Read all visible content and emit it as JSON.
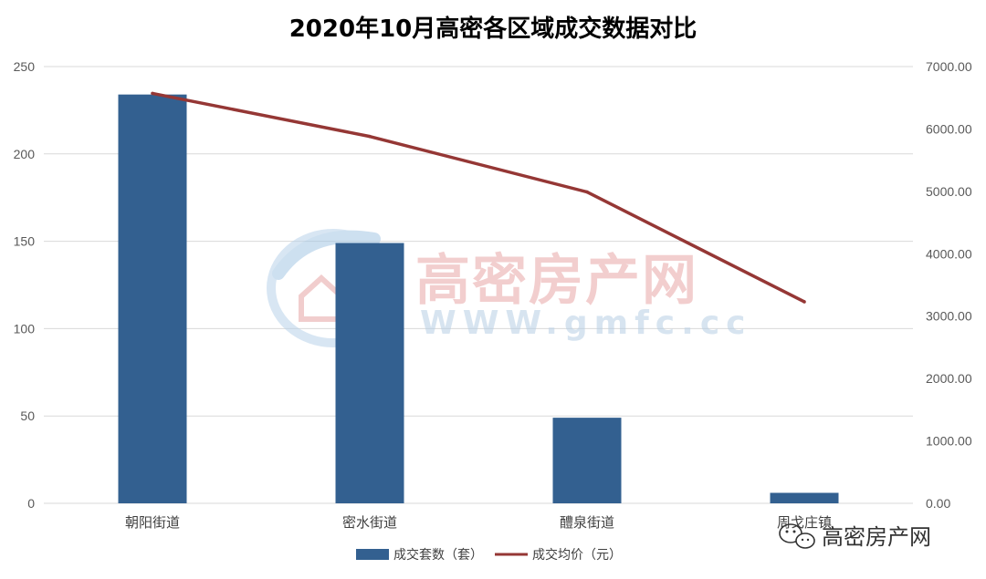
{
  "chart_data": {
    "type": "bar",
    "title": "2020年10月高密各区域成交数据对比",
    "categories": [
      "朝阳街道",
      "密水街道",
      "醴泉街道",
      "周戈庄镇"
    ],
    "series": [
      {
        "name": "成交套数（套）",
        "type": "bar",
        "axis": "left",
        "values": [
          234,
          149,
          49,
          6
        ]
      },
      {
        "name": "成交均价（元）",
        "type": "line",
        "axis": "right",
        "values": [
          6570,
          5880,
          4990,
          3230
        ]
      }
    ],
    "y_left": {
      "ylim": [
        0,
        250
      ],
      "ticks": [
        0,
        50,
        100,
        150,
        200,
        250
      ]
    },
    "y_right": {
      "ylim": [
        0,
        7000
      ],
      "ticks": [
        "0.00",
        "1000.00",
        "2000.00",
        "3000.00",
        "4000.00",
        "5000.00",
        "6000.00",
        "7000.00"
      ]
    },
    "grid": true,
    "legend": "bottom",
    "colors": {
      "bar": "#336090",
      "line": "#953735",
      "grid": "#d9d9d9"
    }
  },
  "watermark": {
    "name": "高密房产网",
    "url": "WWW.gmfc.cc"
  },
  "badge": {
    "text": "高密房产网",
    "icon": "wechat-icon"
  }
}
